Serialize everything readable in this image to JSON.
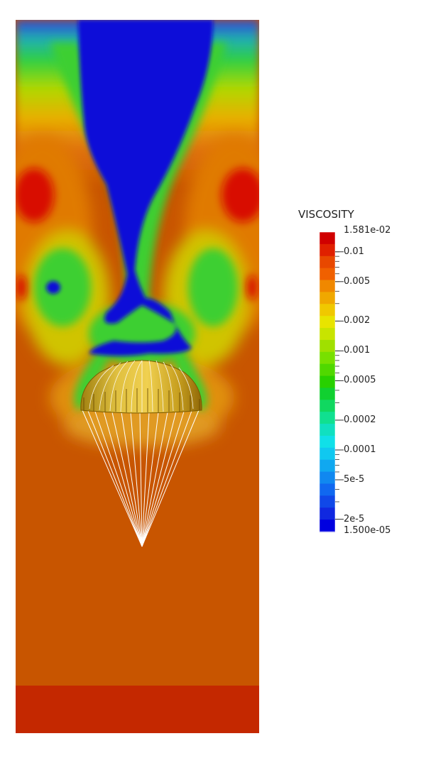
{
  "colors": {
    "background": "#ffffff",
    "red_far": "#c42800",
    "orange_field": "#c85500",
    "orange_light": "#e07a06",
    "yellow": "#d8c800",
    "green": "#2fcf30",
    "blue": "#0a0fd8",
    "canopy": "#d7b030",
    "lines": "#ffffff"
  },
  "legend": {
    "title": "VISCOSITY",
    "max_label": "1.581e-02",
    "min_label": "1.500e-05",
    "ticks": [
      "0.01",
      "0.005",
      "0.002",
      "0.001",
      "0.0005",
      "0.0002",
      "0.0001",
      "5e-5",
      "2e-5"
    ],
    "scale": "log",
    "range": [
      1.5e-05,
      0.01581
    ],
    "bands": [
      "#d00000",
      "#e02000",
      "#e84800",
      "#f06000",
      "#f08800",
      "#f0a800",
      "#f0c800",
      "#e8e400",
      "#c8e400",
      "#a0e000",
      "#78e000",
      "#50d800",
      "#28d000",
      "#10d030",
      "#10d860",
      "#10e090",
      "#10e0c0",
      "#10e0e8",
      "#10c8f0",
      "#10a8f0",
      "#1088f0",
      "#1068f0",
      "#1048e8",
      "#1028e0",
      "#0000e0"
    ]
  }
}
